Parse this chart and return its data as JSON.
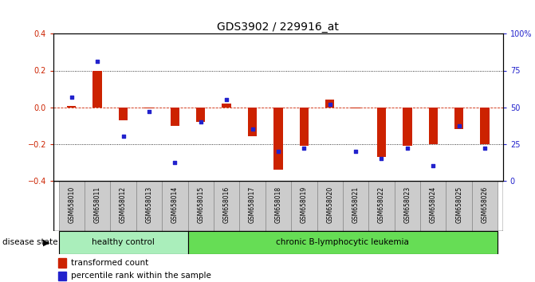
{
  "title": "GDS3902 / 229916_at",
  "samples": [
    "GSM658010",
    "GSM658011",
    "GSM658012",
    "GSM658013",
    "GSM658014",
    "GSM658015",
    "GSM658016",
    "GSM658017",
    "GSM658018",
    "GSM658019",
    "GSM658020",
    "GSM658021",
    "GSM658022",
    "GSM658023",
    "GSM658024",
    "GSM658025",
    "GSM658026"
  ],
  "red_bars": [
    0.005,
    0.2,
    -0.07,
    -0.005,
    -0.1,
    -0.08,
    0.02,
    -0.16,
    -0.34,
    -0.21,
    0.04,
    -0.005,
    -0.27,
    -0.21,
    -0.2,
    -0.12,
    -0.2
  ],
  "blue_pct": [
    57,
    81,
    30,
    47,
    12,
    40,
    55,
    35,
    20,
    22,
    52,
    20,
    15,
    22,
    10,
    37,
    22
  ],
  "ylim": [
    -0.4,
    0.4
  ],
  "yticks_left": [
    -0.4,
    -0.2,
    0.0,
    0.2,
    0.4
  ],
  "yticks_right": [
    0,
    25,
    50,
    75,
    100
  ],
  "ytick_right_labels": [
    "0",
    "25",
    "50",
    "75",
    "100%"
  ],
  "hlines_dotted": [
    -0.2,
    0.2
  ],
  "hline_dashed": 0.0,
  "red_color": "#cc2200",
  "blue_color": "#2222cc",
  "bar_width": 0.35,
  "group1_label": "healthy control",
  "group2_label": "chronic B-lymphocytic leukemia",
  "group1_samples": 5,
  "legend_red": "transformed count",
  "legend_blue": "percentile rank within the sample",
  "disease_state_label": "disease state",
  "group1_color": "#aaeebb",
  "group2_color": "#66dd55",
  "title_fontsize": 10,
  "tick_fontsize": 7,
  "label_fontsize": 7
}
